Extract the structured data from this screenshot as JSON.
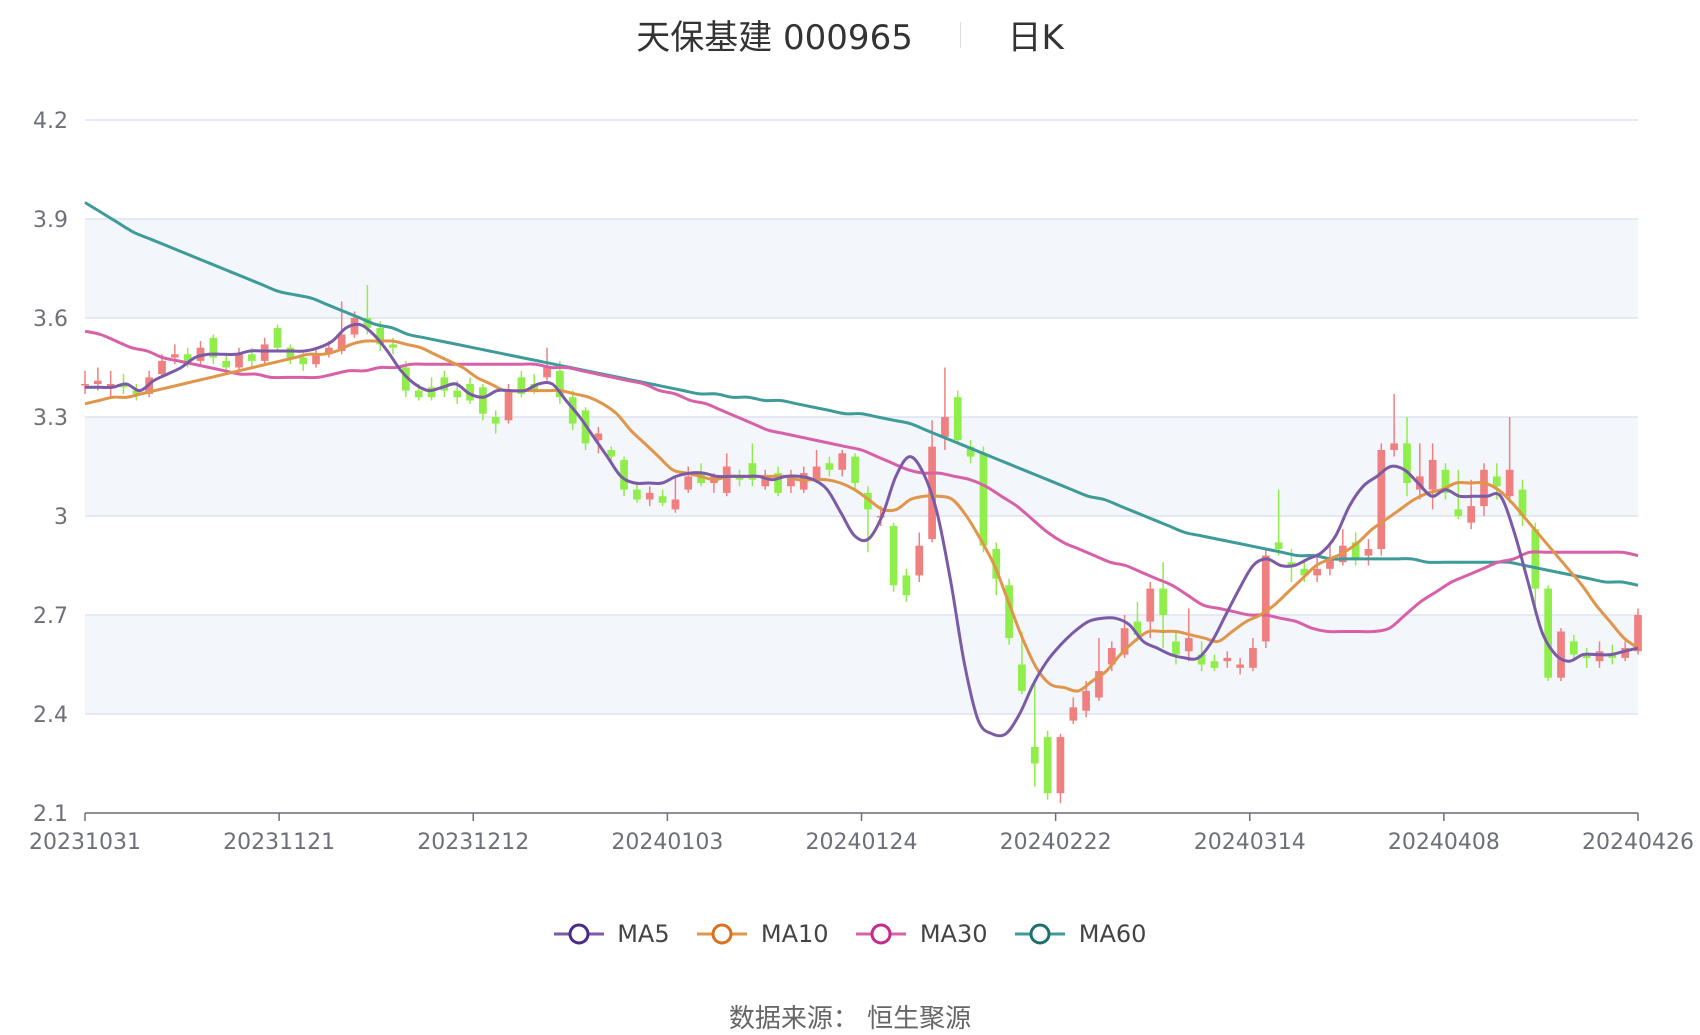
{
  "title": {
    "name": "天保基建 000965",
    "period": "日K"
  },
  "source": "数据来源： 恒生聚源",
  "colors": {
    "up": "#f08080",
    "down": "#90ee4a",
    "MA5": "#7b5aa6",
    "MA10": "#e0954a",
    "MA30": "#d860a8",
    "MA60": "#3f9a9a",
    "MA5_marker": "#4b2a8a",
    "MA10_marker": "#d9711e",
    "MA30_marker": "#c62a8c",
    "MA60_marker": "#1f6f6f"
  },
  "chart_data": {
    "type": "candlestick",
    "ylim": [
      2.1,
      4.2
    ],
    "yticks": [
      "4.2",
      "3.9",
      "3.6",
      "3.3",
      "3",
      "2.7",
      "2.4",
      "2.1"
    ],
    "xtick_labels": [
      "20231031",
      "20231121",
      "20231212",
      "20240103",
      "20240124",
      "20240222",
      "20240314",
      "20240408",
      "20240426"
    ],
    "legend": [
      "MA5",
      "MA10",
      "MA30",
      "MA60"
    ],
    "candles": [
      [
        3.4,
        3.4,
        3.44,
        3.37
      ],
      [
        3.4,
        3.41,
        3.45,
        3.38
      ],
      [
        3.39,
        3.4,
        3.44,
        3.36
      ],
      [
        3.4,
        3.39,
        3.43,
        3.37
      ],
      [
        3.38,
        3.37,
        3.4,
        3.35
      ],
      [
        3.37,
        3.42,
        3.44,
        3.36
      ],
      [
        3.43,
        3.47,
        3.49,
        3.42
      ],
      [
        3.48,
        3.49,
        3.52,
        3.46
      ],
      [
        3.49,
        3.47,
        3.51,
        3.45
      ],
      [
        3.47,
        3.51,
        3.53,
        3.46
      ],
      [
        3.54,
        3.48,
        3.55,
        3.46
      ],
      [
        3.47,
        3.45,
        3.49,
        3.44
      ],
      [
        3.45,
        3.49,
        3.51,
        3.44
      ],
      [
        3.49,
        3.47,
        3.51,
        3.45
      ],
      [
        3.47,
        3.52,
        3.54,
        3.46
      ],
      [
        3.57,
        3.51,
        3.58,
        3.5
      ],
      [
        3.51,
        3.48,
        3.52,
        3.46
      ],
      [
        3.48,
        3.46,
        3.5,
        3.44
      ],
      [
        3.46,
        3.49,
        3.51,
        3.45
      ],
      [
        3.49,
        3.51,
        3.53,
        3.48
      ],
      [
        3.5,
        3.55,
        3.65,
        3.49
      ],
      [
        3.55,
        3.6,
        3.62,
        3.54
      ],
      [
        3.6,
        3.57,
        3.7,
        3.55
      ],
      [
        3.57,
        3.52,
        3.59,
        3.5
      ],
      [
        3.52,
        3.51,
        3.54,
        3.49
      ],
      [
        3.45,
        3.38,
        3.47,
        3.36
      ],
      [
        3.38,
        3.36,
        3.4,
        3.35
      ],
      [
        3.39,
        3.36,
        3.42,
        3.35
      ],
      [
        3.42,
        3.38,
        3.44,
        3.36
      ],
      [
        3.38,
        3.36,
        3.41,
        3.34
      ],
      [
        3.4,
        3.35,
        3.42,
        3.34
      ],
      [
        3.39,
        3.31,
        3.4,
        3.29
      ],
      [
        3.3,
        3.28,
        3.32,
        3.25
      ],
      [
        3.29,
        3.38,
        3.4,
        3.28
      ],
      [
        3.42,
        3.37,
        3.44,
        3.36
      ],
      [
        3.4,
        3.38,
        3.43,
        3.37
      ],
      [
        3.42,
        3.45,
        3.51,
        3.41
      ],
      [
        3.44,
        3.36,
        3.47,
        3.34
      ],
      [
        3.36,
        3.28,
        3.38,
        3.26
      ],
      [
        3.32,
        3.22,
        3.33,
        3.2
      ],
      [
        3.23,
        3.25,
        3.27,
        3.19
      ],
      [
        3.2,
        3.18,
        3.21,
        3.16
      ],
      [
        3.17,
        3.08,
        3.18,
        3.06
      ],
      [
        3.08,
        3.05,
        3.1,
        3.04
      ],
      [
        3.05,
        3.07,
        3.09,
        3.03
      ],
      [
        3.06,
        3.04,
        3.08,
        3.03
      ],
      [
        3.02,
        3.05,
        3.12,
        3.01
      ],
      [
        3.08,
        3.12,
        3.15,
        3.07
      ],
      [
        3.13,
        3.1,
        3.16,
        3.09
      ],
      [
        3.1,
        3.12,
        3.13,
        3.07
      ],
      [
        3.07,
        3.15,
        3.19,
        3.06
      ],
      [
        3.12,
        3.11,
        3.14,
        3.09
      ],
      [
        3.16,
        3.11,
        3.22,
        3.09
      ],
      [
        3.09,
        3.12,
        3.14,
        3.08
      ],
      [
        3.13,
        3.07,
        3.15,
        3.06
      ],
      [
        3.09,
        3.12,
        3.14,
        3.07
      ],
      [
        3.08,
        3.13,
        3.15,
        3.07
      ],
      [
        3.11,
        3.15,
        3.2,
        3.1
      ],
      [
        3.16,
        3.14,
        3.18,
        3.12
      ],
      [
        3.14,
        3.19,
        3.2,
        3.12
      ],
      [
        3.18,
        3.1,
        3.19,
        3.08
      ],
      [
        3.07,
        3.02,
        3.09,
        2.89
      ],
      [
        3.0,
        3.0,
        3.03,
        2.97
      ],
      [
        2.97,
        2.79,
        2.98,
        2.77
      ],
      [
        2.82,
        2.76,
        2.84,
        2.74
      ],
      [
        2.82,
        2.91,
        2.95,
        2.8
      ],
      [
        2.93,
        3.21,
        3.29,
        2.92
      ],
      [
        3.24,
        3.3,
        3.45,
        3.2
      ],
      [
        3.36,
        3.23,
        3.38,
        3.22
      ],
      [
        3.21,
        3.18,
        3.23,
        3.16
      ],
      [
        3.19,
        2.91,
        3.21,
        2.89
      ],
      [
        2.9,
        2.81,
        2.92,
        2.76
      ],
      [
        2.79,
        2.63,
        2.81,
        2.61
      ],
      [
        2.55,
        2.47,
        2.65,
        2.46
      ],
      [
        2.3,
        2.25,
        2.5,
        2.18
      ],
      [
        2.33,
        2.16,
        2.35,
        2.14
      ],
      [
        2.16,
        2.33,
        2.34,
        2.13
      ],
      [
        2.38,
        2.42,
        2.45,
        2.37
      ],
      [
        2.41,
        2.47,
        2.5,
        2.39
      ],
      [
        2.45,
        2.53,
        2.63,
        2.44
      ],
      [
        2.55,
        2.6,
        2.62,
        2.53
      ],
      [
        2.58,
        2.66,
        2.7,
        2.57
      ],
      [
        2.68,
        2.64,
        2.74,
        2.62
      ],
      [
        2.68,
        2.78,
        2.8,
        2.63
      ],
      [
        2.78,
        2.7,
        2.86,
        2.6
      ],
      [
        2.62,
        2.58,
        2.65,
        2.55
      ],
      [
        2.59,
        2.63,
        2.72,
        2.56
      ],
      [
        2.58,
        2.55,
        2.62,
        2.53
      ],
      [
        2.56,
        2.54,
        2.58,
        2.53
      ],
      [
        2.56,
        2.57,
        2.59,
        2.54
      ],
      [
        2.54,
        2.55,
        2.57,
        2.52
      ],
      [
        2.54,
        2.6,
        2.63,
        2.53
      ],
      [
        2.62,
        2.88,
        2.9,
        2.6
      ],
      [
        2.92,
        2.9,
        3.08,
        2.88
      ],
      [
        2.86,
        2.85,
        2.9,
        2.8
      ],
      [
        2.84,
        2.82,
        2.87,
        2.8
      ],
      [
        2.82,
        2.84,
        2.88,
        2.8
      ],
      [
        2.84,
        2.87,
        2.92,
        2.82
      ],
      [
        2.86,
        2.91,
        2.96,
        2.85
      ],
      [
        2.92,
        2.87,
        2.95,
        2.85
      ],
      [
        2.88,
        2.9,
        2.93,
        2.85
      ],
      [
        2.9,
        3.2,
        3.22,
        2.88
      ],
      [
        3.2,
        3.22,
        3.37,
        3.18
      ],
      [
        3.22,
        3.1,
        3.3,
        3.06
      ],
      [
        3.08,
        3.12,
        3.22,
        3.05
      ],
      [
        3.08,
        3.17,
        3.22,
        3.02
      ],
      [
        3.14,
        3.07,
        3.16,
        3.05
      ],
      [
        3.02,
        3.0,
        3.14,
        2.99
      ],
      [
        2.98,
        3.03,
        3.11,
        2.96
      ],
      [
        3.03,
        3.14,
        3.16,
        3.0
      ],
      [
        3.12,
        3.09,
        3.16,
        3.05
      ],
      [
        3.06,
        3.14,
        3.3,
        3.04
      ],
      [
        3.08,
        3.0,
        3.11,
        2.97
      ],
      [
        2.96,
        2.78,
        2.98,
        2.7
      ],
      [
        2.78,
        2.51,
        2.79,
        2.5
      ],
      [
        2.51,
        2.65,
        2.66,
        2.5
      ],
      [
        2.62,
        2.58,
        2.64,
        2.56
      ],
      [
        2.58,
        2.57,
        2.6,
        2.54
      ],
      [
        2.56,
        2.59,
        2.62,
        2.54
      ],
      [
        2.58,
        2.57,
        2.61,
        2.55
      ],
      [
        2.57,
        2.6,
        2.62,
        2.56
      ],
      [
        2.59,
        2.7,
        2.72,
        2.58
      ]
    ],
    "ma": {
      "MA5": [
        3.39,
        3.39,
        3.39,
        3.4,
        3.38,
        3.41,
        3.43,
        3.45,
        3.48,
        3.49,
        3.49,
        3.49,
        3.5,
        3.5,
        3.5,
        3.5,
        3.5,
        3.51,
        3.53,
        3.57,
        3.58,
        3.55,
        3.5,
        3.44,
        3.4,
        3.38,
        3.39,
        3.4,
        3.37,
        3.36,
        3.38,
        3.38,
        3.38,
        3.4,
        3.4,
        3.35,
        3.3,
        3.24,
        3.18,
        3.12,
        3.1,
        3.1,
        3.1,
        3.12,
        3.13,
        3.13,
        3.12,
        3.12,
        3.12,
        3.12,
        3.11,
        3.12,
        3.12,
        3.11,
        3.08,
        3.01,
        2.94,
        2.93,
        3.0,
        3.12,
        3.18,
        3.13,
        3.01,
        2.8,
        2.55,
        2.38,
        2.34,
        2.34,
        2.4,
        2.49,
        2.56,
        2.61,
        2.65,
        2.68,
        2.69,
        2.69,
        2.67,
        2.62,
        2.6,
        2.58,
        2.57,
        2.57,
        2.62,
        2.7,
        2.78,
        2.85,
        2.87,
        2.85,
        2.85,
        2.87,
        2.89,
        2.94,
        3.03,
        3.09,
        3.12,
        3.15,
        3.14,
        3.1,
        3.06,
        3.08,
        3.06,
        3.06,
        3.06,
        3.06,
        2.95,
        2.8,
        2.65,
        2.58,
        2.56,
        2.58,
        2.58,
        2.58,
        2.59,
        2.6
      ],
      "MA10": [
        3.34,
        3.35,
        3.36,
        3.36,
        3.37,
        3.38,
        3.39,
        3.4,
        3.41,
        3.42,
        3.43,
        3.44,
        3.45,
        3.46,
        3.47,
        3.48,
        3.49,
        3.49,
        3.5,
        3.52,
        3.53,
        3.53,
        3.53,
        3.52,
        3.51,
        3.49,
        3.47,
        3.45,
        3.42,
        3.4,
        3.38,
        3.38,
        3.38,
        3.38,
        3.38,
        3.37,
        3.36,
        3.34,
        3.31,
        3.26,
        3.22,
        3.18,
        3.14,
        3.13,
        3.12,
        3.11,
        3.12,
        3.12,
        3.12,
        3.12,
        3.12,
        3.11,
        3.11,
        3.11,
        3.1,
        3.08,
        3.05,
        3.02,
        3.02,
        3.05,
        3.06,
        3.06,
        3.05,
        3.0,
        2.93,
        2.85,
        2.74,
        2.63,
        2.54,
        2.49,
        2.48,
        2.47,
        2.5,
        2.53,
        2.58,
        2.62,
        2.65,
        2.65,
        2.65,
        2.64,
        2.63,
        2.62,
        2.65,
        2.68,
        2.7,
        2.73,
        2.77,
        2.81,
        2.85,
        2.87,
        2.89,
        2.92,
        2.96,
        2.99,
        3.02,
        3.05,
        3.07,
        3.08,
        3.1,
        3.1,
        3.1,
        3.08,
        3.04,
        2.99,
        2.94,
        2.89,
        2.84,
        2.79,
        2.73,
        2.68,
        2.63,
        2.6
      ],
      "MA30": [
        3.56,
        3.55,
        3.53,
        3.51,
        3.5,
        3.48,
        3.47,
        3.46,
        3.45,
        3.44,
        3.43,
        3.43,
        3.42,
        3.42,
        3.42,
        3.42,
        3.43,
        3.44,
        3.44,
        3.45,
        3.45,
        3.46,
        3.46,
        3.46,
        3.46,
        3.46,
        3.46,
        3.46,
        3.46,
        3.46,
        3.45,
        3.45,
        3.44,
        3.43,
        3.42,
        3.41,
        3.4,
        3.38,
        3.37,
        3.35,
        3.34,
        3.32,
        3.3,
        3.28,
        3.26,
        3.25,
        3.24,
        3.23,
        3.22,
        3.21,
        3.2,
        3.18,
        3.16,
        3.14,
        3.13,
        3.13,
        3.12,
        3.11,
        3.09,
        3.06,
        3.03,
        2.99,
        2.95,
        2.92,
        2.9,
        2.88,
        2.86,
        2.85,
        2.83,
        2.81,
        2.79,
        2.76,
        2.73,
        2.72,
        2.71,
        2.7,
        2.7,
        2.69,
        2.68,
        2.66,
        2.65,
        2.65,
        2.65,
        2.65,
        2.66,
        2.7,
        2.74,
        2.77,
        2.8,
        2.82,
        2.84,
        2.86,
        2.87,
        2.89,
        2.89,
        2.89,
        2.89,
        2.89,
        2.89,
        2.89,
        2.88
      ],
      "MA60": [
        3.95,
        3.92,
        3.89,
        3.86,
        3.84,
        3.82,
        3.8,
        3.78,
        3.76,
        3.74,
        3.72,
        3.7,
        3.68,
        3.67,
        3.66,
        3.64,
        3.62,
        3.6,
        3.58,
        3.57,
        3.55,
        3.54,
        3.53,
        3.52,
        3.51,
        3.5,
        3.49,
        3.48,
        3.47,
        3.46,
        3.45,
        3.44,
        3.43,
        3.42,
        3.41,
        3.4,
        3.39,
        3.38,
        3.37,
        3.37,
        3.36,
        3.36,
        3.35,
        3.35,
        3.34,
        3.33,
        3.32,
        3.31,
        3.31,
        3.3,
        3.29,
        3.28,
        3.26,
        3.24,
        3.22,
        3.2,
        3.18,
        3.16,
        3.14,
        3.12,
        3.1,
        3.08,
        3.06,
        3.05,
        3.03,
        3.01,
        2.99,
        2.97,
        2.95,
        2.94,
        2.93,
        2.92,
        2.91,
        2.9,
        2.89,
        2.88,
        2.88,
        2.87,
        2.87,
        2.87,
        2.87,
        2.87,
        2.87,
        2.86,
        2.86,
        2.86,
        2.86,
        2.86,
        2.86,
        2.85,
        2.84,
        2.83,
        2.82,
        2.81,
        2.8,
        2.8,
        2.79
      ]
    }
  }
}
